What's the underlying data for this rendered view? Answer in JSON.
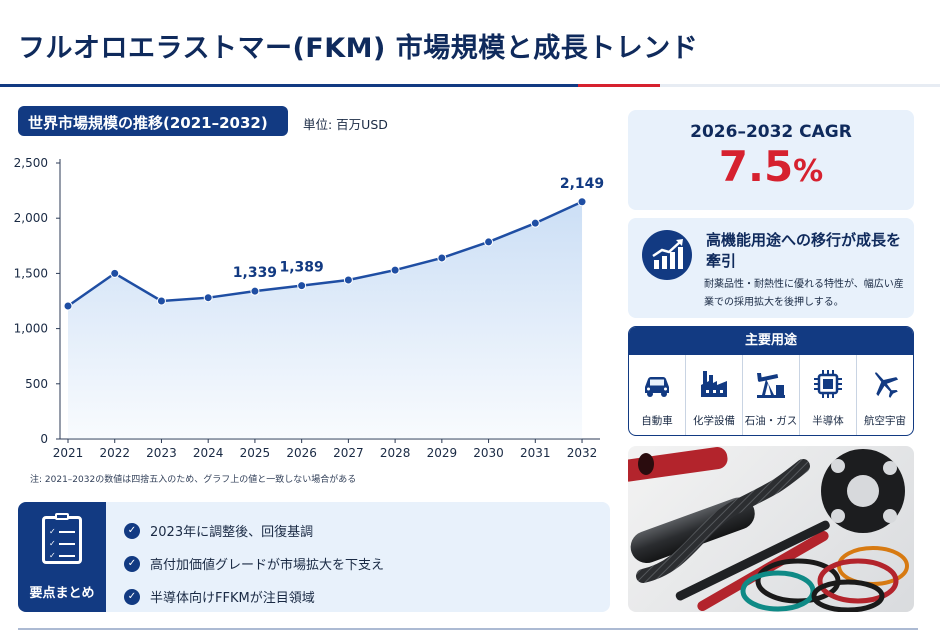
{
  "header": {
    "title": "フルオロエラストマー(FKM) 市場規模と成長トレンド"
  },
  "chart_section": {
    "badge": "世界市場規模の推移(2021–2032)",
    "unit": "単位: 百万USD",
    "note": "注: 2021–2032の数値は四捨五入のため、グラフ上の値と一致しない場合がある"
  },
  "chart_data": {
    "type": "area",
    "title": "世界市場規模の推移(2021–2032)",
    "ylabel": "単位: 百万USD",
    "x": [
      "2021",
      "2022",
      "2023",
      "2024",
      "2025",
      "2026",
      "2027",
      "2028",
      "2029",
      "2030",
      "2031",
      "2032"
    ],
    "series": [
      {
        "values": [
          1205,
          1500,
          1250,
          1280,
          1339,
          1389,
          1440,
          1530,
          1640,
          1785,
          1955,
          2149
        ]
      }
    ],
    "ylim": [
      0,
      2500
    ],
    "yticks": [
      0,
      500,
      1000,
      1500,
      2000,
      2500
    ],
    "ytick_labels": [
      "0",
      "500",
      "1,000",
      "1,500",
      "2,000",
      "2,500"
    ],
    "data_labels": [
      {
        "x": "2025",
        "text": "1,339"
      },
      {
        "x": "2026",
        "text": "1,389"
      },
      {
        "x": "2032",
        "text": "2,149"
      }
    ],
    "grid": false,
    "colors": {
      "line": "#1f4ea3",
      "fill": "#c9ddf5",
      "marker": "#1f4ea3"
    }
  },
  "summary": {
    "label": "要点まとめ",
    "items": [
      "2023年に調整後、回復基調",
      "高付加価値グレードが市場拡大を下支え",
      "半導体向けFFKMが注目領域"
    ]
  },
  "cagr": {
    "label": "2026–2032 CAGR",
    "value": "7.5",
    "unit": "%"
  },
  "trend": {
    "title": "高機能用途への移行が成長を牽引",
    "description": "耐薬品性・耐熱性に優れる特性が、幅広い産業での採用拡大を後押しする。"
  },
  "uses": {
    "title": "主要用途",
    "items": [
      {
        "label": "自動車",
        "icon": "car-icon"
      },
      {
        "label": "化学設備",
        "icon": "factory-icon"
      },
      {
        "label": "石油・ガス",
        "icon": "oil-pump-icon"
      },
      {
        "label": "半導体",
        "icon": "chip-icon"
      },
      {
        "label": "航空宇宙",
        "icon": "airplane-icon"
      }
    ]
  },
  "colors": {
    "navy": "#123a82",
    "red": "#d6212f",
    "panel": "#e8f1fb"
  }
}
